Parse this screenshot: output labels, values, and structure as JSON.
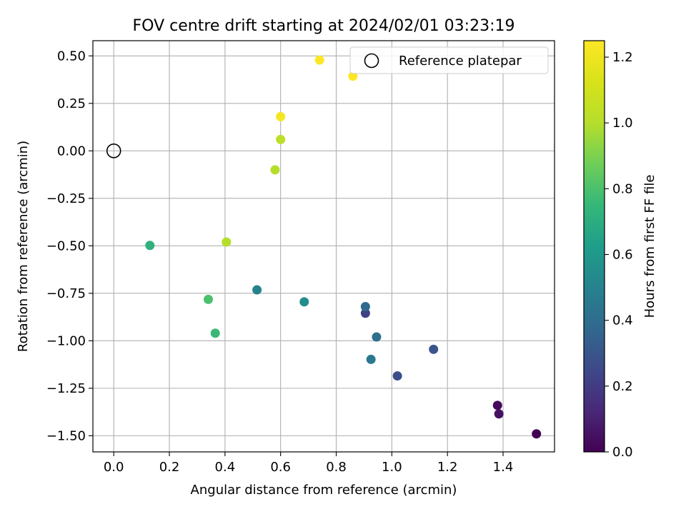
{
  "chart_data": {
    "type": "scatter",
    "title": "FOV centre drift starting at 2024/02/01 03:23:19",
    "xlabel": "Angular distance from reference (arcmin)",
    "ylabel": "Rotation from reference (arcmin)",
    "xlim": [
      -0.075,
      1.585
    ],
    "ylim": [
      -1.585,
      0.58
    ],
    "xticks": [
      0.0,
      0.2,
      0.4,
      0.6,
      0.8,
      1.0,
      1.2,
      1.4
    ],
    "xtick_labels": [
      "0.0",
      "0.2",
      "0.4",
      "0.6",
      "0.8",
      "1.0",
      "1.2",
      "1.4"
    ],
    "yticks": [
      0.5,
      0.25,
      0.0,
      -0.25,
      -0.5,
      -0.75,
      -1.0,
      -1.25,
      -1.5
    ],
    "ytick_labels": [
      "0.50",
      "0.25",
      "0.00",
      "−0.25",
      "−0.50",
      "−0.75",
      "−1.00",
      "−1.25",
      "−1.50"
    ],
    "grid": true,
    "legend": {
      "location": "upper right",
      "entries": [
        "Reference platepar"
      ]
    },
    "reference_point": {
      "x": 0.0,
      "y": 0.0,
      "label": "Reference platepar"
    },
    "colorbar": {
      "label": "Hours from first FF file",
      "colormap": "viridis",
      "range": [
        0.0,
        1.25
      ],
      "ticks": [
        0.0,
        0.2,
        0.4,
        0.6,
        0.8,
        1.0,
        1.2
      ],
      "tick_labels": [
        "0.0",
        "0.2",
        "0.4",
        "0.6",
        "0.8",
        "1.0",
        "1.2"
      ]
    },
    "points": [
      {
        "x": 1.52,
        "y": -1.49,
        "c": 0.0
      },
      {
        "x": 1.38,
        "y": -1.34,
        "c": 0.03
      },
      {
        "x": 1.385,
        "y": -1.385,
        "c": 0.05
      },
      {
        "x": 0.905,
        "y": -0.855,
        "c": 0.22
      },
      {
        "x": 1.02,
        "y": -1.185,
        "c": 0.27
      },
      {
        "x": 1.15,
        "y": -1.045,
        "c": 0.3
      },
      {
        "x": 0.905,
        "y": -0.82,
        "c": 0.38
      },
      {
        "x": 0.945,
        "y": -0.98,
        "c": 0.42
      },
      {
        "x": 0.925,
        "y": -1.098,
        "c": 0.45
      },
      {
        "x": 0.515,
        "y": -0.732,
        "c": 0.5
      },
      {
        "x": 0.685,
        "y": -0.795,
        "c": 0.55
      },
      {
        "x": 0.13,
        "y": -0.498,
        "c": 0.72
      },
      {
        "x": 0.365,
        "y": -0.96,
        "c": 0.76
      },
      {
        "x": 0.34,
        "y": -0.782,
        "c": 0.8
      },
      {
        "x": 0.405,
        "y": -0.48,
        "c": 1.0
      },
      {
        "x": 0.58,
        "y": -0.1,
        "c": 1.0
      },
      {
        "x": 0.6,
        "y": 0.06,
        "c": 1.03
      },
      {
        "x": 0.6,
        "y": 0.18,
        "c": 1.22
      },
      {
        "x": 0.74,
        "y": 0.478,
        "c": 1.25
      },
      {
        "x": 0.86,
        "y": 0.393,
        "c": 1.25
      }
    ]
  }
}
